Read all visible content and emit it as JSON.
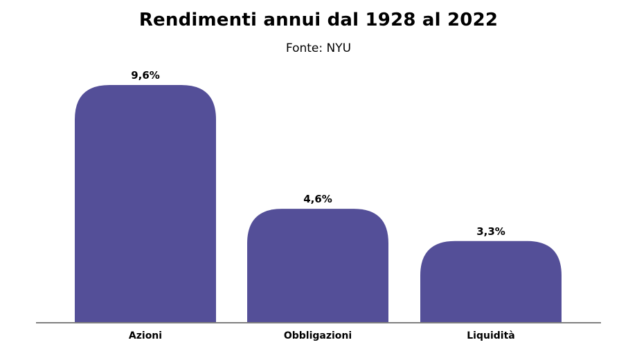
{
  "chart_data": {
    "type": "bar",
    "title": "Rendimenti annui dal 1928 al 2022",
    "subtitle": "Fonte: NYU",
    "categories": [
      "Azioni",
      "Obbligazioni",
      "Liquidità"
    ],
    "values": [
      9.6,
      4.6,
      3.3
    ],
    "value_labels": [
      "9,6%",
      "4,6%",
      "3,3%"
    ],
    "xlabel": "",
    "ylabel": "",
    "ylim": [
      0,
      9.6
    ],
    "grid": false,
    "legend": "none",
    "colors": {
      "bar": "#544F98",
      "baseline": "#7F7F7F",
      "text": "#000000"
    }
  }
}
